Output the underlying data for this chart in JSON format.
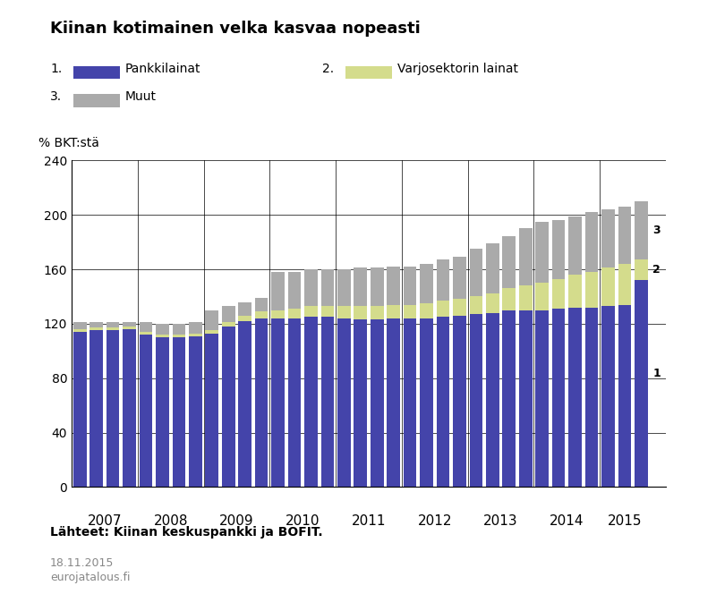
{
  "title": "Kiinan kotimainen velka kasvaa nopeasti",
  "ylabel": "% BKT:stä",
  "source": "Lähteet: Kiinan keskuspankki ja BOFIT.",
  "date_text": "18.11.2015",
  "website": "eurojatalous.fi",
  "ylim": [
    0,
    240
  ],
  "yticks": [
    0,
    40,
    80,
    120,
    160,
    200,
    240
  ],
  "bar_color_blue": "#4444aa",
  "bar_color_yellow": "#d4dc8c",
  "bar_color_gray": "#aaaaaa",
  "year_labels": [
    "2007",
    "2008",
    "2009",
    "2010",
    "2011",
    "2012",
    "2013",
    "2014",
    "2015"
  ],
  "blue_values": [
    114,
    115,
    115,
    116,
    112,
    110,
    110,
    111,
    113,
    118,
    122,
    124,
    124,
    124,
    125,
    125,
    124,
    123,
    123,
    124,
    124,
    124,
    125,
    126,
    127,
    128,
    130,
    130,
    130,
    131,
    132,
    132,
    133,
    134,
    152
  ],
  "yellow_values": [
    2,
    2,
    2,
    2,
    2,
    2,
    2,
    2,
    2,
    3,
    4,
    5,
    6,
    7,
    8,
    8,
    9,
    10,
    10,
    10,
    10,
    11,
    12,
    12,
    13,
    14,
    16,
    18,
    20,
    22,
    24,
    26,
    28,
    30,
    15
  ],
  "gray_values": [
    5,
    4,
    4,
    3,
    7,
    8,
    8,
    8,
    15,
    12,
    10,
    10,
    28,
    27,
    27,
    27,
    27,
    28,
    28,
    28,
    28,
    29,
    30,
    31,
    35,
    37,
    38,
    42,
    45,
    43,
    43,
    44,
    43,
    42,
    43
  ],
  "background_color": "#ffffff"
}
